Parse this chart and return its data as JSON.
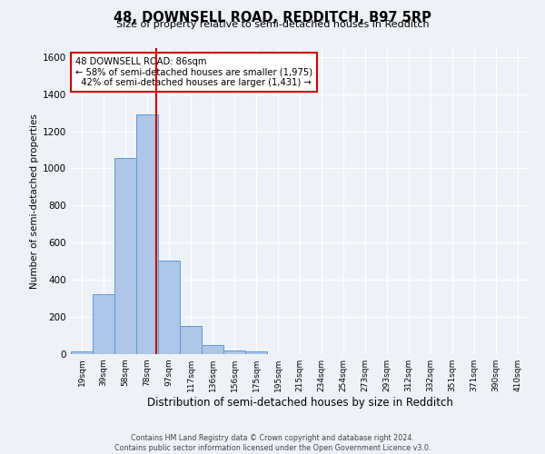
{
  "title": "48, DOWNSELL ROAD, REDDITCH, B97 5RP",
  "subtitle": "Size of property relative to semi-detached houses in Redditch",
  "xlabel": "Distribution of semi-detached houses by size in Redditch",
  "ylabel": "Number of semi-detached properties",
  "bin_labels": [
    "19sqm",
    "39sqm",
    "58sqm",
    "78sqm",
    "97sqm",
    "117sqm",
    "136sqm",
    "156sqm",
    "175sqm",
    "195sqm",
    "215sqm",
    "234sqm",
    "254sqm",
    "273sqm",
    "293sqm",
    "312sqm",
    "332sqm",
    "351sqm",
    "371sqm",
    "390sqm",
    "410sqm"
  ],
  "bin_edges": [
    9.5,
    29,
    48.5,
    68,
    87.5,
    107,
    126.5,
    146,
    165.5,
    185,
    204.5,
    224,
    243.5,
    263,
    282.5,
    302,
    321.5,
    341,
    360.5,
    380,
    399.5,
    419
  ],
  "bar_heights": [
    15,
    325,
    1055,
    1290,
    505,
    150,
    50,
    20,
    15,
    0,
    0,
    0,
    0,
    0,
    0,
    0,
    0,
    0,
    0,
    0,
    0
  ],
  "bar_color": "#aec6e8",
  "bar_edge_color": "#5b9bd5",
  "property_value": 86,
  "vline_color": "#cc0000",
  "annotation_line1": "48 DOWNSELL ROAD: 86sqm",
  "annotation_line2": "← 58% of semi-detached houses are smaller (1,975)",
  "annotation_line3": "  42% of semi-detached houses are larger (1,431) →",
  "annotation_box_color": "#ffffff",
  "annotation_box_edge": "#cc0000",
  "ylim": [
    0,
    1650
  ],
  "yticks": [
    0,
    200,
    400,
    600,
    800,
    1000,
    1200,
    1400,
    1600
  ],
  "footer_text": "Contains HM Land Registry data © Crown copyright and database right 2024.\nContains public sector information licensed under the Open Government Licence v3.0.",
  "bg_color": "#eef2f8",
  "grid_color": "#ffffff"
}
